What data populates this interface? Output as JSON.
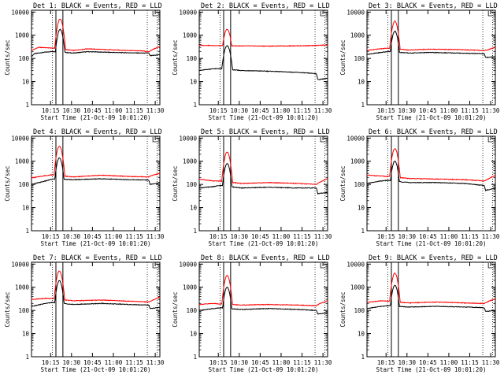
{
  "panels_common": {
    "ylabel": "Counts/sec",
    "xlabel": "Start Time (21-Oct-09 10:01:20)",
    "x_ticks": [
      "10:15",
      "10:30",
      "10:45",
      "11:00",
      "11:15",
      "11:30"
    ],
    "y_ticks": [
      "1",
      "10",
      "100",
      "1000",
      "10000"
    ],
    "series_colors": {
      "events": "#000000",
      "lld": "#ff0000"
    }
  },
  "chart_data": [
    {
      "type": "line",
      "title": "Det 1: BLACK = Events, RED = LLD",
      "x_range_min": [
        0,
        92
      ],
      "ylim": [
        1,
        12000
      ],
      "y_scale": "log",
      "solid_vlines_min": [
        17.5,
        22.5
      ],
      "dotted_vlines_min": [
        15,
        83,
        90
      ],
      "series": [
        {
          "name": "Events",
          "baseline": [
            [
              0,
              120
            ],
            [
              2,
              160
            ],
            [
              8,
              180
            ],
            [
              15,
              200
            ],
            [
              30,
              170
            ],
            [
              40,
              195
            ],
            [
              60,
              180
            ],
            [
              80,
              170
            ],
            [
              84,
              170
            ],
            [
              85,
              130
            ],
            [
              92,
              145
            ]
          ],
          "peak": {
            "t": 20.5,
            "value": 1800,
            "width": 1.6
          }
        },
        {
          "name": "LLD",
          "baseline": [
            [
              0,
              220
            ],
            [
              5,
              300
            ],
            [
              15,
              280
            ],
            [
              30,
              220
            ],
            [
              40,
              260
            ],
            [
              60,
              230
            ],
            [
              80,
              210
            ],
            [
              84,
              190
            ],
            [
              86,
              230
            ],
            [
              92,
              330
            ]
          ],
          "peak": {
            "t": 20.5,
            "value": 5000,
            "width": 1.6
          }
        }
      ]
    },
    {
      "type": "line",
      "title": "Det 2: BLACK = Events, RED = LLD",
      "x_range_min": [
        0,
        92
      ],
      "ylim": [
        1,
        12000
      ],
      "y_scale": "log",
      "solid_vlines_min": [
        17.5,
        22.5
      ],
      "dotted_vlines_min": [
        15,
        83,
        90
      ],
      "series": [
        {
          "name": "Events",
          "baseline": [
            [
              0,
              30
            ],
            [
              10,
              36
            ],
            [
              15,
              36
            ],
            [
              30,
              30
            ],
            [
              50,
              28
            ],
            [
              70,
              25
            ],
            [
              84,
              22
            ],
            [
              85,
              12
            ],
            [
              92,
              14
            ]
          ],
          "peak": {
            "t": 20,
            "value": 350,
            "width": 1.8
          }
        },
        {
          "name": "LLD",
          "baseline": [
            [
              0,
              370
            ],
            [
              20,
              350
            ],
            [
              50,
              340
            ],
            [
              80,
              355
            ],
            [
              92,
              380
            ]
          ],
          "peak": {
            "t": 20,
            "value": 1800,
            "width": 1.8
          }
        }
      ]
    },
    {
      "type": "line",
      "title": "Det 3: BLACK = Events, RED = LLD",
      "x_range_min": [
        0,
        92
      ],
      "ylim": [
        1,
        12000
      ],
      "y_scale": "log",
      "solid_vlines_min": [
        17.5,
        22.5
      ],
      "dotted_vlines_min": [
        15,
        83,
        90
      ],
      "series": [
        {
          "name": "Events",
          "baseline": [
            [
              0,
              150
            ],
            [
              10,
              180
            ],
            [
              15,
              200
            ],
            [
              30,
              170
            ],
            [
              45,
              180
            ],
            [
              65,
              170
            ],
            [
              84,
              160
            ],
            [
              85,
              110
            ],
            [
              92,
              120
            ]
          ],
          "peak": {
            "t": 20,
            "value": 1500,
            "width": 1.6
          }
        },
        {
          "name": "LLD",
          "baseline": [
            [
              0,
              220
            ],
            [
              10,
              260
            ],
            [
              15,
              280
            ],
            [
              30,
              230
            ],
            [
              45,
              250
            ],
            [
              65,
              240
            ],
            [
              84,
              220
            ],
            [
              86,
              230
            ],
            [
              92,
              300
            ]
          ],
          "peak": {
            "t": 20,
            "value": 4000,
            "width": 1.6
          }
        }
      ]
    },
    {
      "type": "line",
      "title": "Det 4: BLACK = Events, RED = LLD",
      "x_range_min": [
        0,
        92
      ],
      "ylim": [
        1,
        12000
      ],
      "y_scale": "log",
      "solid_vlines_min": [
        17.5,
        22.5
      ],
      "dotted_vlines_min": [
        15,
        83,
        90
      ],
      "series": [
        {
          "name": "Events",
          "baseline": [
            [
              0,
              100
            ],
            [
              10,
              140
            ],
            [
              15,
              170
            ],
            [
              30,
              160
            ],
            [
              50,
              175
            ],
            [
              70,
              160
            ],
            [
              84,
              155
            ],
            [
              85,
              100
            ],
            [
              92,
              120
            ]
          ],
          "peak": {
            "t": 20,
            "value": 1400,
            "width": 1.6
          }
        },
        {
          "name": "LLD",
          "baseline": [
            [
              0,
              190
            ],
            [
              10,
              240
            ],
            [
              15,
              260
            ],
            [
              30,
              210
            ],
            [
              50,
              250
            ],
            [
              70,
              220
            ],
            [
              84,
              210
            ],
            [
              86,
              240
            ],
            [
              92,
              300
            ]
          ],
          "peak": {
            "t": 20,
            "value": 4500,
            "width": 1.6
          }
        }
      ]
    },
    {
      "type": "line",
      "title": "Det 5: BLACK = Events, RED = LLD",
      "x_range_min": [
        0,
        92
      ],
      "ylim": [
        1,
        12000
      ],
      "y_scale": "log",
      "solid_vlines_min": [
        17.5,
        22.5
      ],
      "dotted_vlines_min": [
        15,
        83,
        90
      ],
      "series": [
        {
          "name": "Events",
          "baseline": [
            [
              0,
              70
            ],
            [
              10,
              80
            ],
            [
              15,
              90
            ],
            [
              30,
              70
            ],
            [
              50,
              75
            ],
            [
              70,
              70
            ],
            [
              84,
              70
            ],
            [
              85,
              40
            ],
            [
              92,
              45
            ]
          ],
          "peak": {
            "t": 20,
            "value": 800,
            "width": 1.6
          }
        },
        {
          "name": "LLD",
          "baseline": [
            [
              0,
              170
            ],
            [
              10,
              140
            ],
            [
              15,
              140
            ],
            [
              30,
              110
            ],
            [
              50,
              120
            ],
            [
              70,
              110
            ],
            [
              84,
              100
            ],
            [
              86,
              120
            ],
            [
              92,
              180
            ]
          ],
          "peak": {
            "t": 20,
            "value": 2500,
            "width": 1.6
          }
        }
      ]
    },
    {
      "type": "line",
      "title": "Det 6: BLACK = Events, RED = LLD",
      "x_range_min": [
        0,
        92
      ],
      "ylim": [
        1,
        12000
      ],
      "y_scale": "log",
      "solid_vlines_min": [
        17.5,
        22.5
      ],
      "dotted_vlines_min": [
        15,
        83,
        90
      ],
      "series": [
        {
          "name": "Events",
          "baseline": [
            [
              0,
              110
            ],
            [
              10,
              140
            ],
            [
              15,
              150
            ],
            [
              30,
              120
            ],
            [
              50,
              120
            ],
            [
              70,
              110
            ],
            [
              84,
              90
            ],
            [
              85,
              55
            ],
            [
              92,
              70
            ]
          ],
          "peak": {
            "t": 20,
            "value": 1000,
            "width": 1.6
          }
        },
        {
          "name": "LLD",
          "baseline": [
            [
              0,
              250
            ],
            [
              10,
              230
            ],
            [
              15,
              220
            ],
            [
              30,
              180
            ],
            [
              50,
              170
            ],
            [
              70,
              160
            ],
            [
              84,
              140
            ],
            [
              86,
              160
            ],
            [
              92,
              250
            ]
          ],
          "peak": {
            "t": 20,
            "value": 3500,
            "width": 1.6
          }
        }
      ]
    },
    {
      "type": "line",
      "title": "Det 7: BLACK = Events, RED = LLD",
      "x_range_min": [
        0,
        92
      ],
      "ylim": [
        1,
        12000
      ],
      "y_scale": "log",
      "solid_vlines_min": [
        17.5,
        22.5
      ],
      "dotted_vlines_min": [
        15,
        83,
        90
      ],
      "series": [
        {
          "name": "Events",
          "baseline": [
            [
              0,
              150
            ],
            [
              10,
              200
            ],
            [
              15,
              220
            ],
            [
              30,
              180
            ],
            [
              50,
              200
            ],
            [
              70,
              180
            ],
            [
              84,
              170
            ],
            [
              85,
              120
            ],
            [
              92,
              135
            ]
          ],
          "peak": {
            "t": 20,
            "value": 1900,
            "width": 1.6
          }
        },
        {
          "name": "LLD",
          "baseline": [
            [
              0,
              300
            ],
            [
              10,
              330
            ],
            [
              15,
              320
            ],
            [
              30,
              260
            ],
            [
              50,
              280
            ],
            [
              70,
              250
            ],
            [
              84,
              230
            ],
            [
              86,
              260
            ],
            [
              92,
              380
            ]
          ],
          "peak": {
            "t": 20,
            "value": 5000,
            "width": 1.6
          }
        }
      ]
    },
    {
      "type": "line",
      "title": "Det 8: BLACK = Events, RED = LLD",
      "x_range_min": [
        0,
        92
      ],
      "ylim": [
        1,
        12000
      ],
      "y_scale": "log",
      "solid_vlines_min": [
        17.5,
        22.5
      ],
      "dotted_vlines_min": [
        15,
        83,
        90
      ],
      "series": [
        {
          "name": "Events",
          "baseline": [
            [
              0,
              100
            ],
            [
              10,
              120
            ],
            [
              15,
              130
            ],
            [
              30,
              110
            ],
            [
              50,
              120
            ],
            [
              70,
              110
            ],
            [
              84,
              100
            ],
            [
              85,
              70
            ],
            [
              92,
              80
            ]
          ],
          "peak": {
            "t": 20,
            "value": 1000,
            "width": 1.6
          }
        },
        {
          "name": "LLD",
          "baseline": [
            [
              0,
              180
            ],
            [
              10,
              200
            ],
            [
              15,
              190
            ],
            [
              30,
              170
            ],
            [
              50,
              180
            ],
            [
              70,
              170
            ],
            [
              84,
              160
            ],
            [
              86,
              190
            ],
            [
              92,
              260
            ]
          ],
          "peak": {
            "t": 20,
            "value": 3200,
            "width": 1.6
          }
        }
      ]
    },
    {
      "type": "line",
      "title": "Det 9: BLACK = Events, RED = LLD",
      "x_range_min": [
        0,
        92
      ],
      "ylim": [
        1,
        12000
      ],
      "y_scale": "log",
      "solid_vlines_min": [
        17.5,
        22.5
      ],
      "dotted_vlines_min": [
        15,
        83,
        90
      ],
      "series": [
        {
          "name": "Events",
          "baseline": [
            [
              0,
              120
            ],
            [
              10,
              150
            ],
            [
              15,
              160
            ],
            [
              30,
              140
            ],
            [
              50,
              150
            ],
            [
              70,
              140
            ],
            [
              84,
              130
            ],
            [
              85,
              90
            ],
            [
              92,
              100
            ]
          ],
          "peak": {
            "t": 20,
            "value": 1200,
            "width": 1.6
          }
        },
        {
          "name": "LLD",
          "baseline": [
            [
              0,
              220
            ],
            [
              10,
              260
            ],
            [
              15,
              250
            ],
            [
              30,
              210
            ],
            [
              50,
              230
            ],
            [
              70,
              210
            ],
            [
              84,
              200
            ],
            [
              86,
              230
            ],
            [
              92,
              320
            ]
          ],
          "peak": {
            "t": 20,
            "value": 4000,
            "width": 1.6
          }
        }
      ]
    }
  ]
}
